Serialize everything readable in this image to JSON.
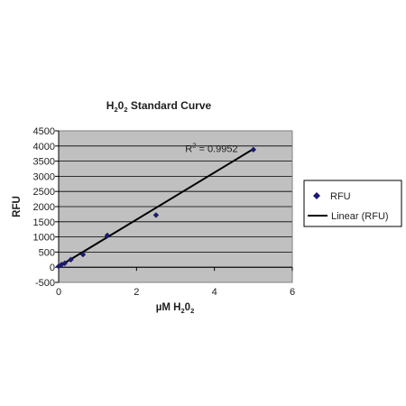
{
  "chart_data": {
    "type": "scatter",
    "title": {
      "main": "H",
      "sub1": "2",
      "mid": "0",
      "sub2": "2",
      "rest": " Standard Curve"
    },
    "xlabel": {
      "main": "µM H",
      "sub1": "2",
      "mid": "0",
      "sub2": "2"
    },
    "ylabel": "RFU",
    "xlim": [
      0,
      6
    ],
    "ylim": [
      -500,
      4500
    ],
    "x_ticks": [
      "0",
      "2",
      "4",
      "6"
    ],
    "y_ticks": [
      "-500",
      "0",
      "500",
      "1000",
      "1500",
      "2000",
      "2500",
      "3000",
      "3500",
      "4000",
      "4500"
    ],
    "grid": true,
    "plot_background": "#c0c0c0",
    "legend_position": "right",
    "series": [
      {
        "name": "RFU",
        "marker": "diamond",
        "color": "#1a1a6e",
        "x": [
          0,
          0.078,
          0.156,
          0.3125,
          0.625,
          1.25,
          2.5,
          5.0
        ],
        "y": [
          30,
          90,
          130,
          250,
          420,
          1050,
          1720,
          3880
        ]
      },
      {
        "name": "Linear (RFU)",
        "type": "line",
        "color": "#000000",
        "x": [
          0,
          5.0
        ],
        "y": [
          20,
          3900
        ]
      }
    ],
    "annotation": {
      "text_main": "R",
      "text_sup": "2",
      "text_rest": " = 0.9952",
      "x": 3.25,
      "y": 3800
    }
  }
}
